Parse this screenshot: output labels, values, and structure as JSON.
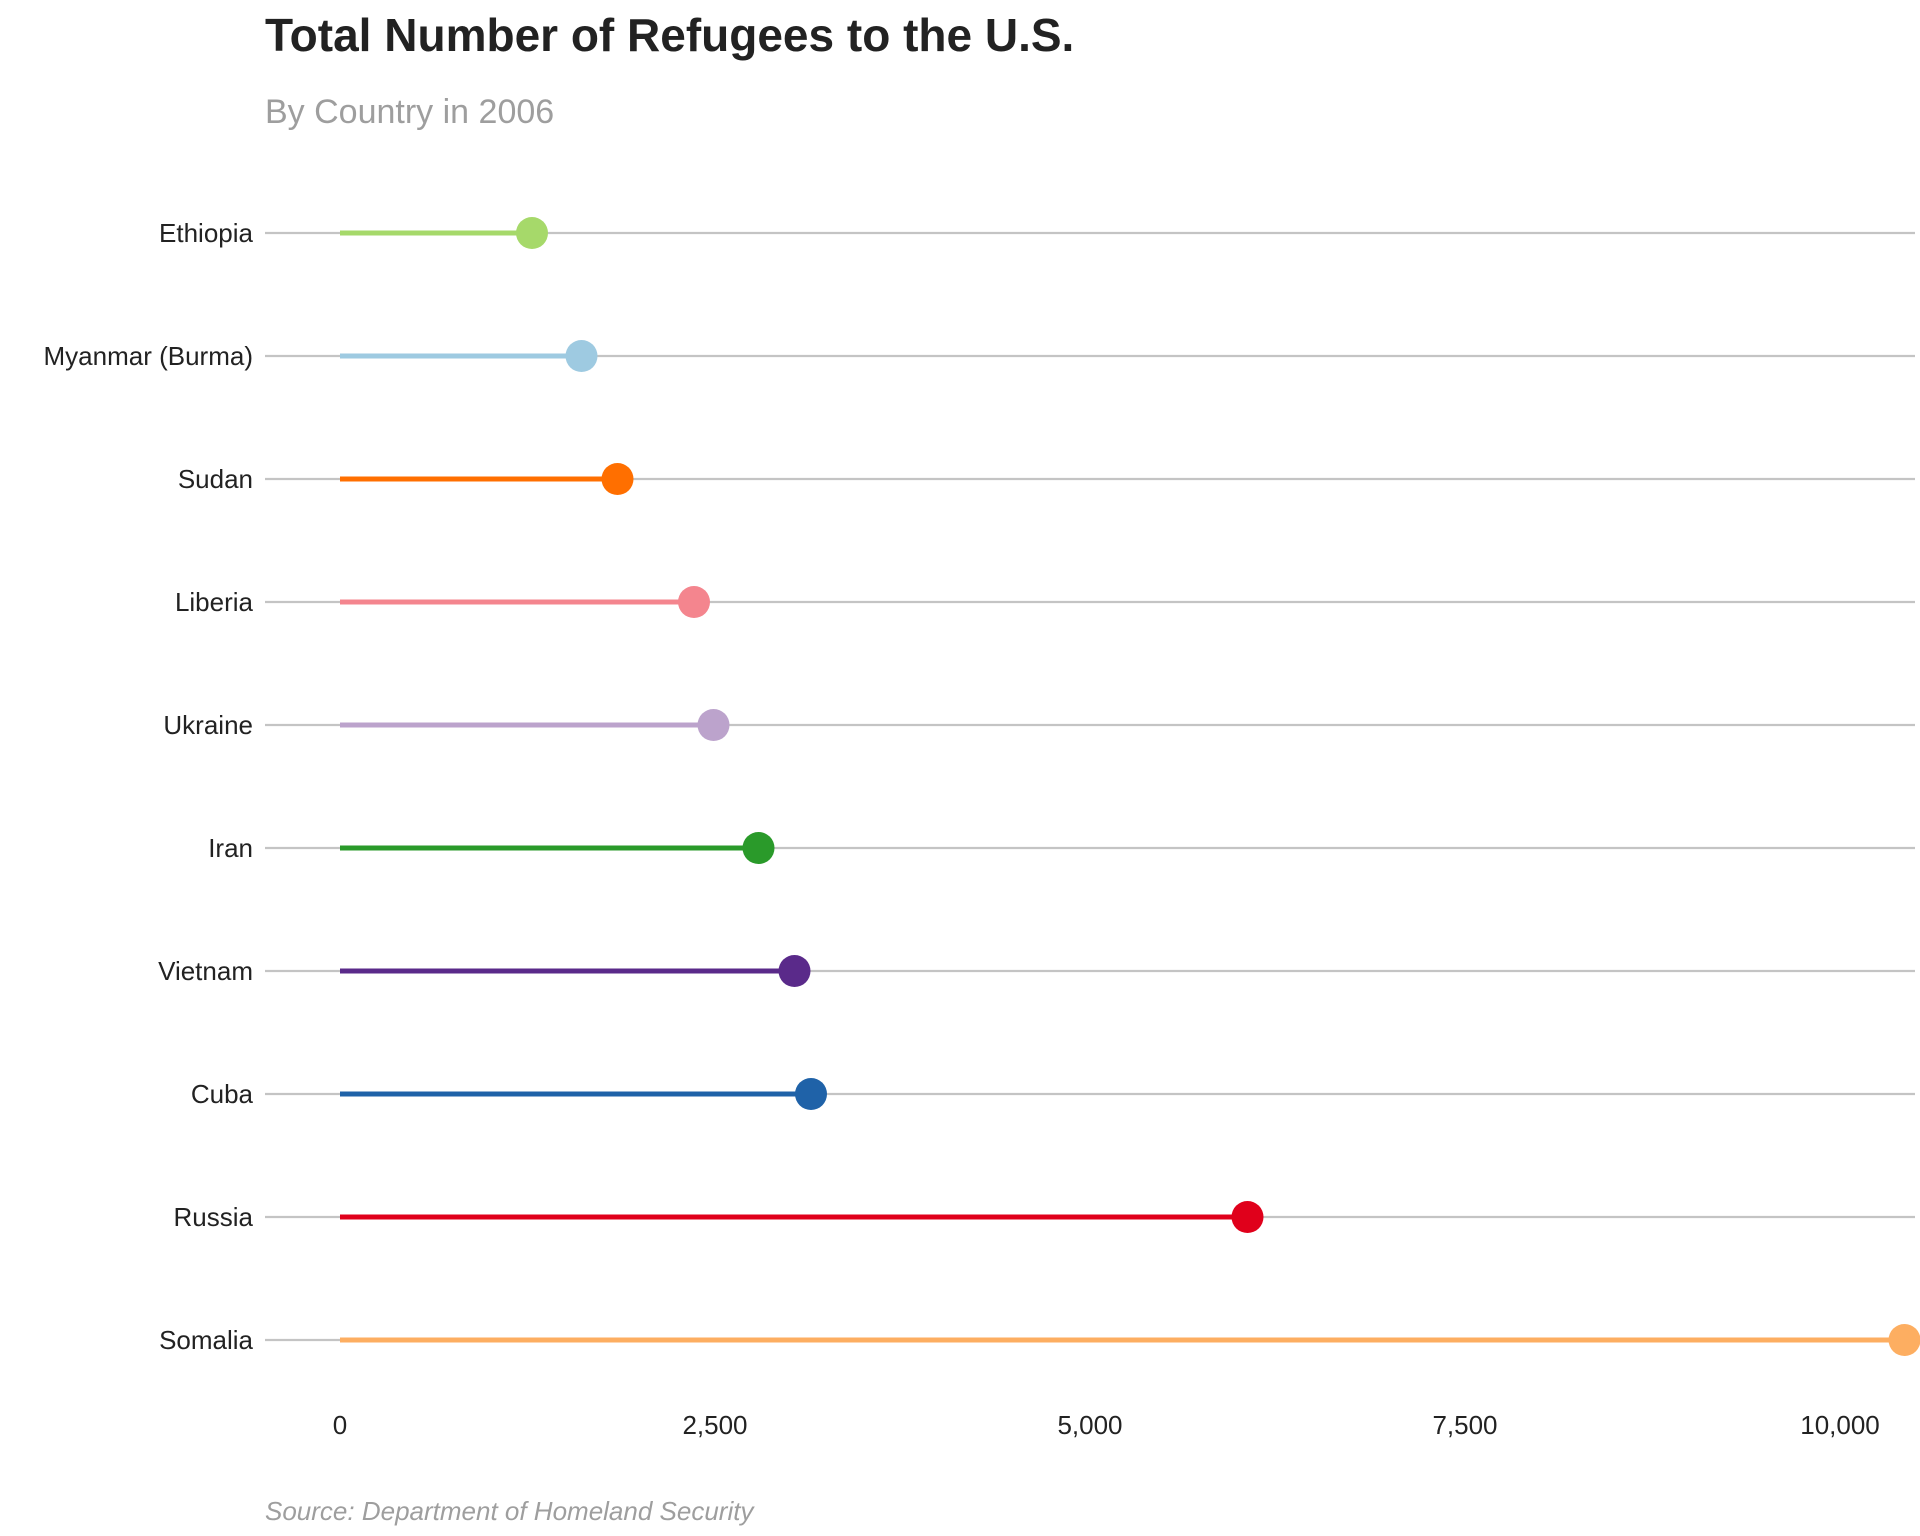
{
  "chart_data": {
    "type": "lollipop",
    "title": "Total Number of Refugees to the U.S.",
    "subtitle": "By Country in 2006",
    "caption": "Source: Department of Homeland Security",
    "xlabel": "",
    "ylabel": "",
    "xlim": [
      -250,
      10850
    ],
    "x_ticks": [
      0,
      2500,
      5000,
      7500,
      10000
    ],
    "x_tick_labels": [
      "0",
      "2,500",
      "5,000",
      "7,500",
      "10,000"
    ],
    "grid": "horizontal",
    "legend": "none",
    "categories": [
      "Ethiopia",
      "Myanmar (Burma)",
      "Sudan",
      "Liberia",
      "Ukraine",
      "Iran",
      "Vietnam",
      "Cuba",
      "Russia",
      "Somalia"
    ],
    "values": [
      1280,
      1610,
      1850,
      2360,
      2490,
      2790,
      3030,
      3140,
      6050,
      10430
    ],
    "colors": [
      "#a6d96a",
      "#9ecae1",
      "#ff6f00",
      "#f4858e",
      "#bca3cc",
      "#2a9a2a",
      "#5a2a8a",
      "#1f62a8",
      "#e0001b",
      "#fdae61"
    ]
  }
}
